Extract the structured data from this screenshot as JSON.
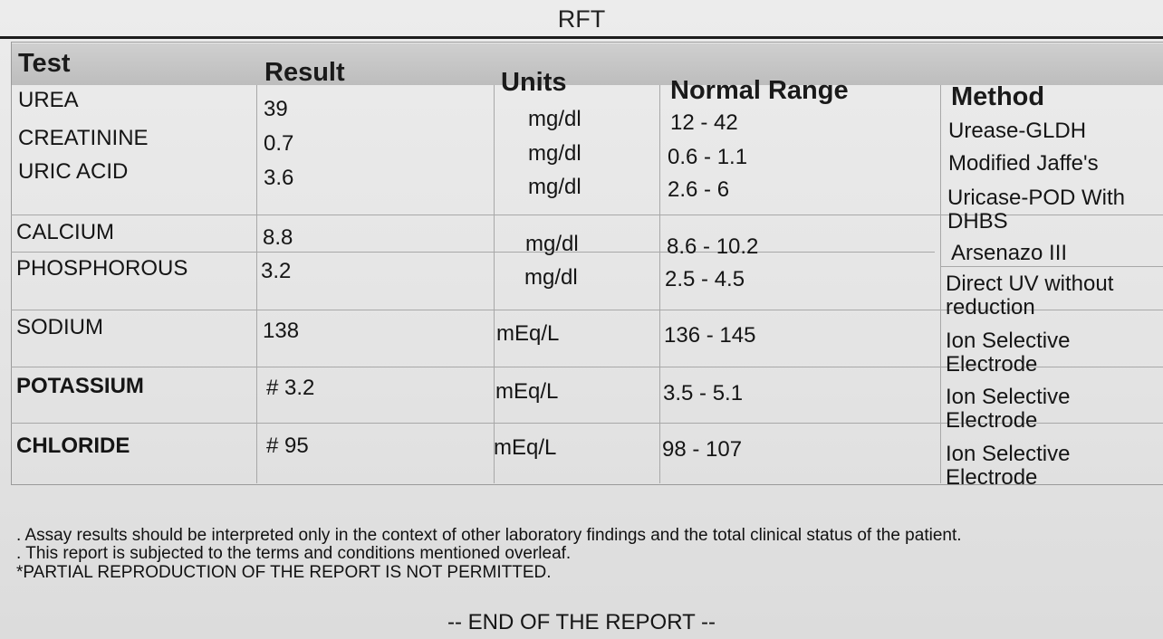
{
  "report": {
    "title": "RFT",
    "columns": {
      "test": "Test",
      "result": "Result",
      "units": "Units",
      "range": "Normal Range",
      "method": "Method"
    },
    "rows": [
      {
        "test": "UREA",
        "result": "39",
        "units": "mg/dl",
        "range": "12 - 42",
        "method": "Urease-GLDH"
      },
      {
        "test": "CREATININE",
        "result": "0.7",
        "units": "mg/dl",
        "range": "0.6 - 1.1",
        "method": "Modified Jaffe's"
      },
      {
        "test": "URIC ACID",
        "result": "3.6",
        "units": "mg/dl",
        "range": "2.6 - 6",
        "method": "Uricase-POD With DHBS"
      },
      {
        "test": "CALCIUM",
        "result": "8.8",
        "units": "mg/dl",
        "range": "8.6 - 10.2",
        "method": "Arsenazo  III"
      },
      {
        "test": "PHOSPHOROUS",
        "result": "3.2",
        "units": "mg/dl",
        "range": "2.5 - 4.5",
        "method": "Direct  UV  without reduction"
      },
      {
        "test": "SODIUM",
        "result": "138",
        "units": "mEq/L",
        "range": "136 - 145",
        "method": "Ion Selective Electrode"
      },
      {
        "test": "POTASSIUM",
        "result": "# 3.2",
        "units": "mEq/L",
        "range": "3.5 - 5.1",
        "method": "Ion Selective Electrode"
      },
      {
        "test": "CHLORIDE",
        "result": "# 95",
        "units": "mEq/L",
        "range": "98 - 107",
        "method": "Ion Selective Electrode"
      }
    ],
    "notes": [
      ". Assay results should be interpreted only in the context of other laboratory findings and the total clinical status of the patient.",
      ". This report is subjected to the terms and conditions mentioned overleaf.",
      "*PARTIAL REPRODUCTION OF THE REPORT IS NOT PERMITTED."
    ],
    "end": "-- END OF THE REPORT --"
  }
}
